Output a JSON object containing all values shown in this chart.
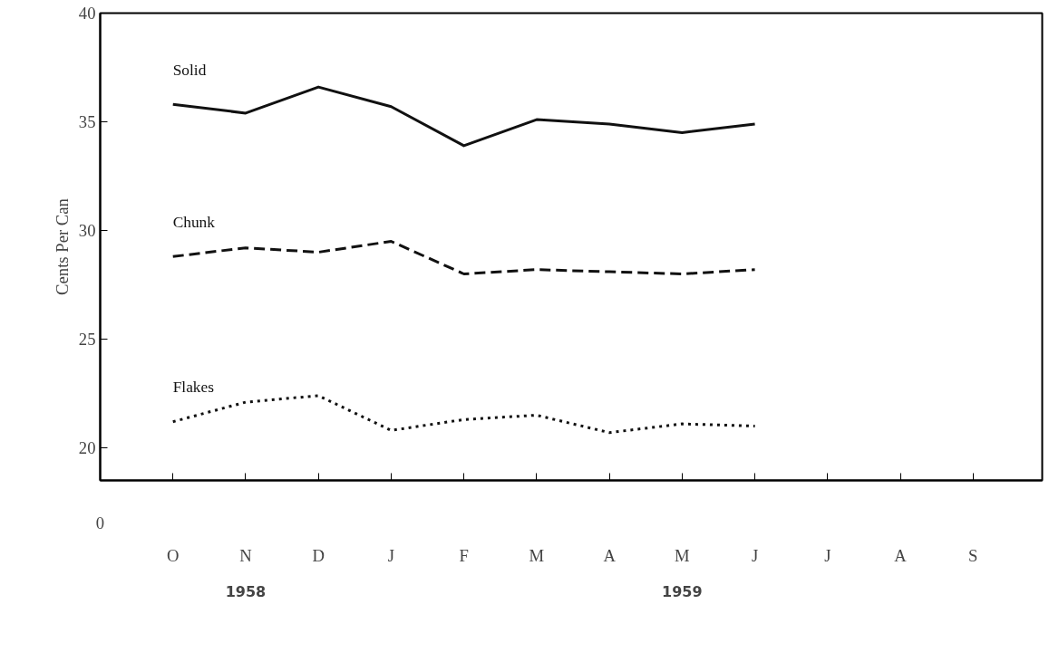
{
  "chart_data": {
    "type": "line",
    "ylabel": "Cents Per Can",
    "categories": [
      "O",
      "N",
      "D",
      "J",
      "F",
      "M",
      "A",
      "M",
      "J",
      "J",
      "A",
      "S"
    ],
    "series": [
      {
        "name": "Solid",
        "color": "#111111",
        "line_style": "solid",
        "values": [
          35.8,
          35.4,
          36.6,
          35.7,
          33.9,
          35.1,
          34.9,
          34.5,
          34.9,
          null,
          null,
          null
        ]
      },
      {
        "name": "Chunk",
        "color": "#111111",
        "line_style": "dashed",
        "values": [
          28.8,
          29.2,
          29.0,
          29.5,
          28.0,
          28.2,
          28.1,
          28.0,
          28.2,
          null,
          null,
          null
        ]
      },
      {
        "name": "Flakes",
        "color": "#111111",
        "line_style": "dotted",
        "values": [
          21.2,
          22.1,
          22.4,
          20.8,
          21.3,
          21.5,
          20.7,
          21.1,
          21.0,
          null,
          null,
          null
        ]
      }
    ],
    "ylim": [
      18.5,
      40
    ],
    "yticks": [
      20,
      25,
      30,
      35,
      40
    ],
    "grid": false,
    "legend": false,
    "marker": "none",
    "annotations": [
      "0",
      "1958",
      "1959"
    ]
  }
}
